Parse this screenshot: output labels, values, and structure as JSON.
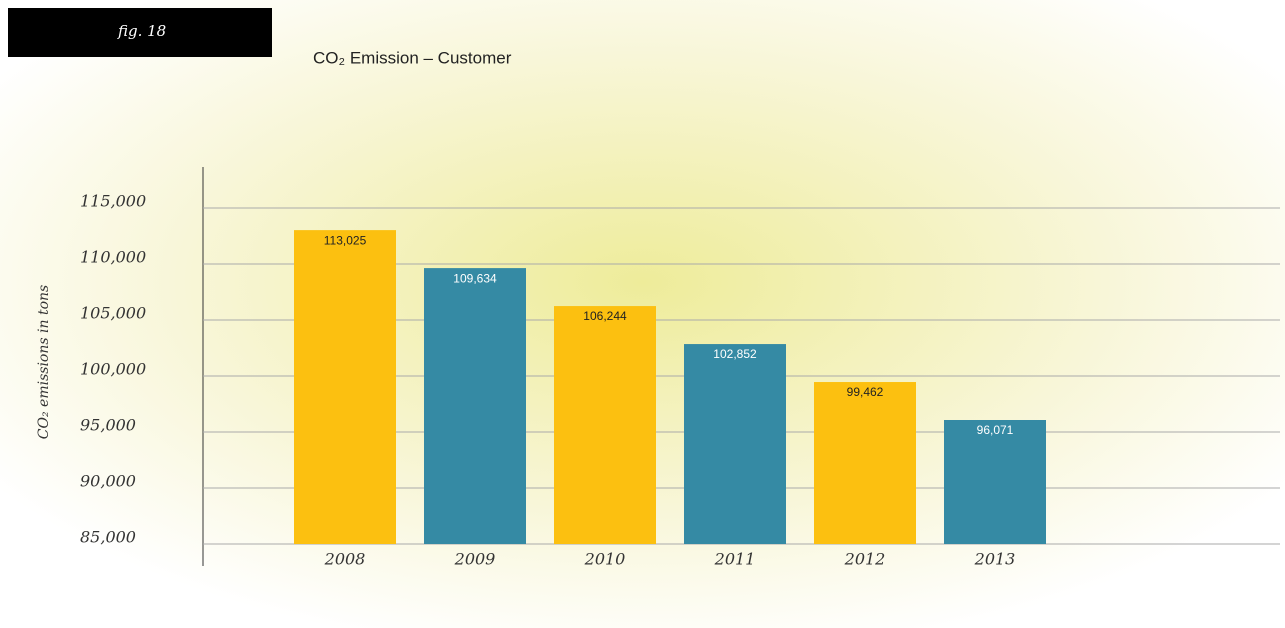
{
  "figure_label": "fig. 18",
  "chart_data": {
    "type": "bar",
    "title": "CO₂ Emission – Customer",
    "y_label": "CO₂ emissions in tons",
    "categories": [
      "2008",
      "2009",
      "2010",
      "2011",
      "2012",
      "2013"
    ],
    "values": [
      113025,
      109634,
      106244,
      102852,
      99462,
      96071
    ],
    "value_labels": [
      "113,025",
      "109,634",
      "106,244",
      "102,852",
      "99,462",
      "96,071"
    ],
    "colors": [
      "#fcc010",
      "#358aa4",
      "#fcc010",
      "#358aa4",
      "#fcc010",
      "#358aa4"
    ],
    "ylim": [
      85000,
      115000
    ],
    "yticks": [
      {
        "value": 85000,
        "label": "85,000"
      },
      {
        "value": 90000,
        "label": "90,000"
      },
      {
        "value": 95000,
        "label": "95,000"
      },
      {
        "value": 100000,
        "label": "100,000"
      },
      {
        "value": 105000,
        "label": "105,000"
      },
      {
        "value": 110000,
        "label": "110,000"
      },
      {
        "value": 115000,
        "label": "115,000"
      }
    ],
    "grid": true
  }
}
